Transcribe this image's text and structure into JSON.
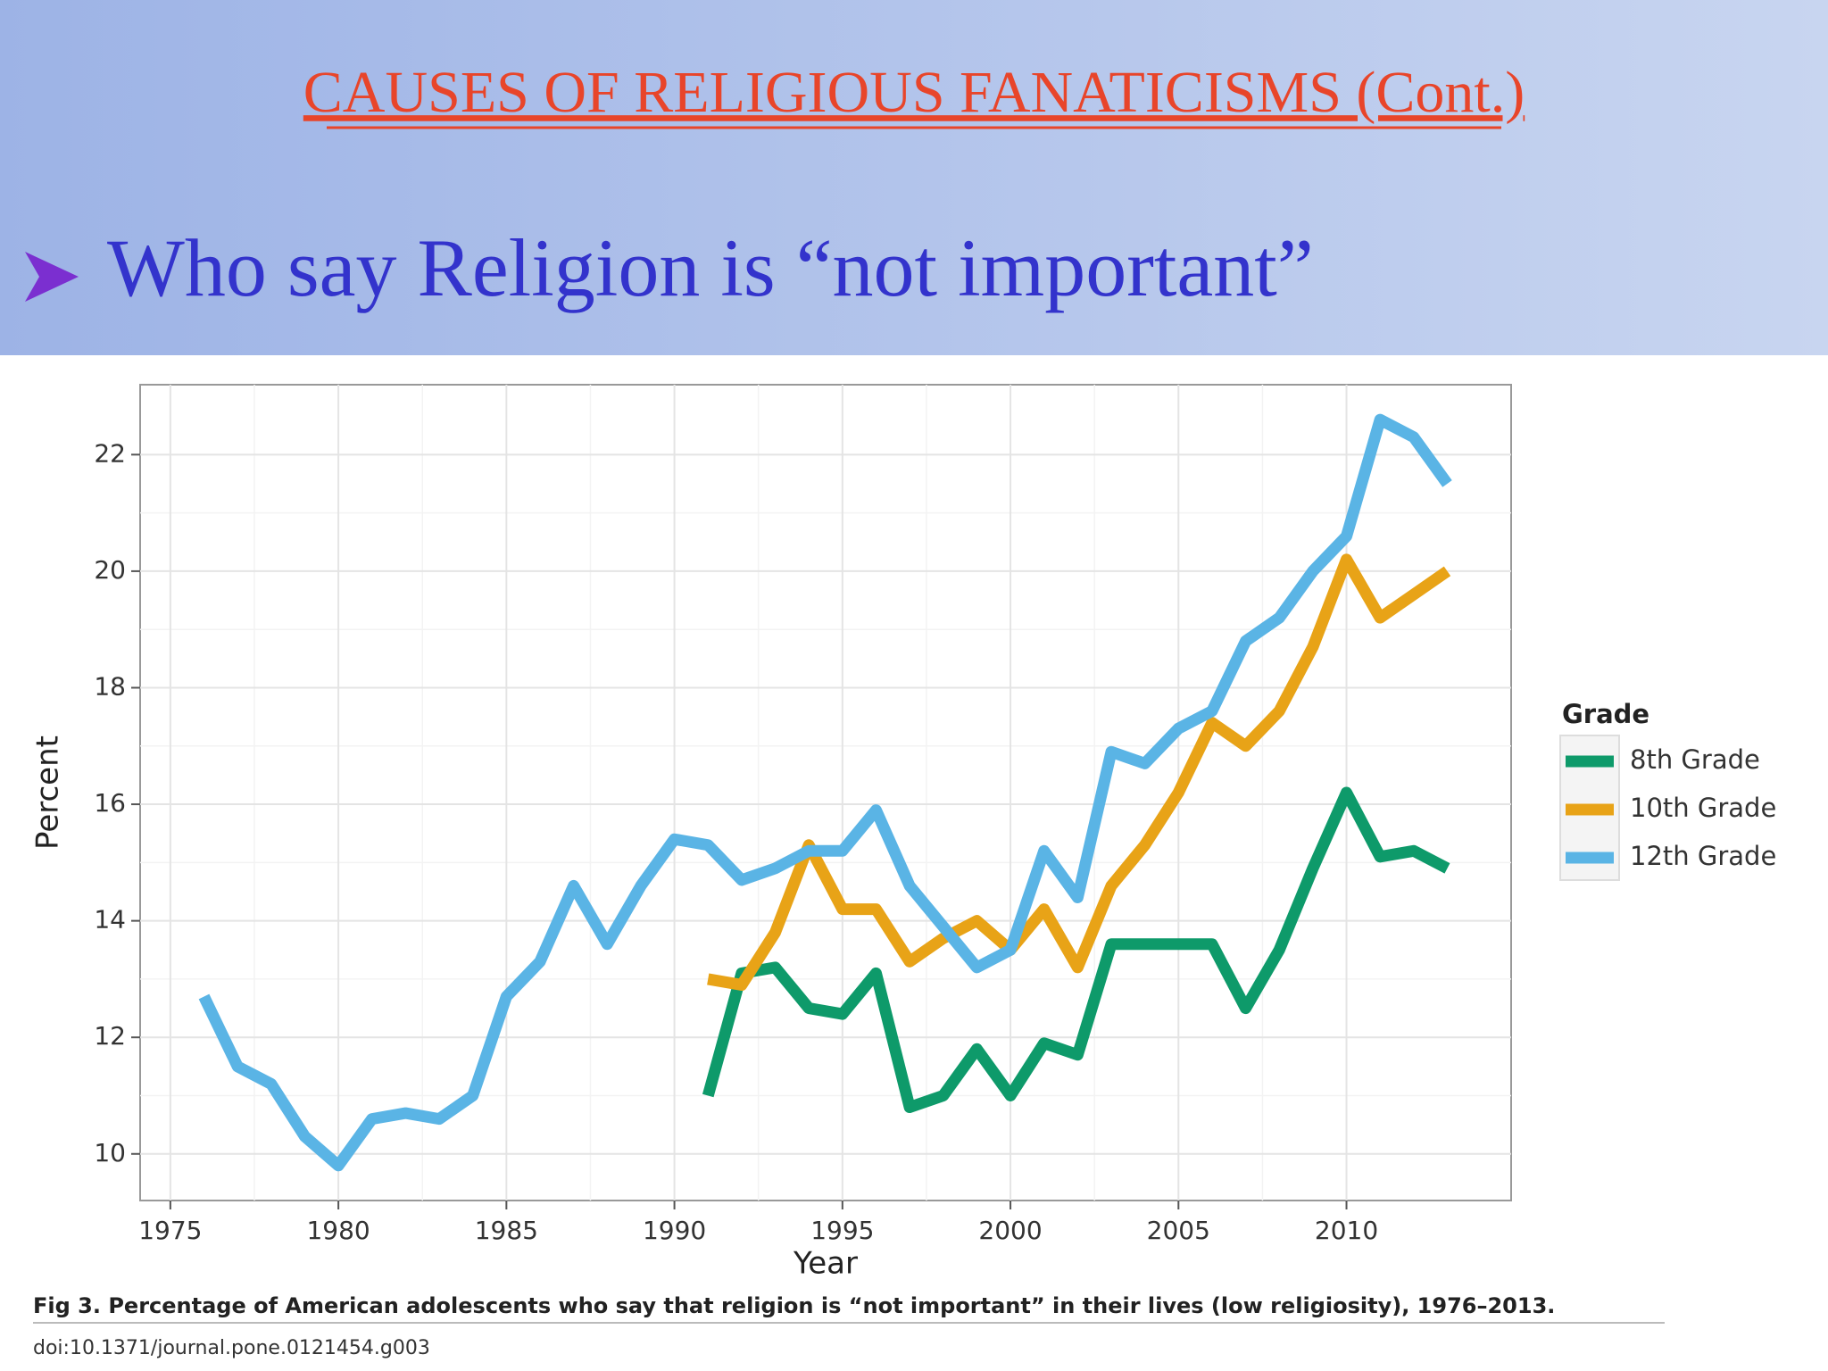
{
  "header": {
    "title": "CAUSES OF RELIGIOUS FANATICISMS (Cont.)",
    "subtitle": "Who say Religion is “not important”"
  },
  "chart_data": {
    "type": "line",
    "xlabel": "Year",
    "ylabel": "Percent",
    "x": [
      1976,
      1977,
      1978,
      1979,
      1980,
      1981,
      1982,
      1983,
      1984,
      1985,
      1986,
      1987,
      1988,
      1989,
      1990,
      1991,
      1992,
      1993,
      1994,
      1995,
      1996,
      1997,
      1998,
      1999,
      2000,
      2001,
      2002,
      2003,
      2004,
      2005,
      2006,
      2007,
      2008,
      2009,
      2010,
      2011,
      2012,
      2013
    ],
    "series": [
      {
        "name": "8th Grade",
        "color": "#0e9a6a",
        "values": [
          null,
          null,
          null,
          null,
          null,
          null,
          null,
          null,
          null,
          null,
          null,
          null,
          null,
          null,
          null,
          11.0,
          13.1,
          13.2,
          12.5,
          12.4,
          13.1,
          10.8,
          11.0,
          11.8,
          11.0,
          11.9,
          11.7,
          13.6,
          13.6,
          13.6,
          13.6,
          12.5,
          13.5,
          14.9,
          16.2,
          15.1,
          15.2,
          14.9
        ]
      },
      {
        "name": "10th Grade",
        "color": "#e8a317",
        "values": [
          null,
          null,
          null,
          null,
          null,
          null,
          null,
          null,
          null,
          null,
          null,
          null,
          null,
          null,
          null,
          13.0,
          12.9,
          13.8,
          15.3,
          14.2,
          14.2,
          13.3,
          13.7,
          14.0,
          13.5,
          14.2,
          13.2,
          14.6,
          15.3,
          16.2,
          17.4,
          17.0,
          17.6,
          18.7,
          20.2,
          19.2,
          19.6,
          20.0
        ]
      },
      {
        "name": "12th Grade",
        "color": "#5ab4e5",
        "values": [
          12.7,
          11.5,
          11.2,
          10.3,
          9.8,
          10.6,
          10.7,
          10.6,
          11.0,
          12.7,
          13.3,
          14.6,
          13.6,
          14.6,
          15.4,
          15.3,
          14.7,
          14.9,
          15.2,
          15.2,
          15.9,
          14.6,
          13.9,
          13.2,
          13.5,
          15.2,
          14.4,
          16.9,
          16.7,
          17.3,
          17.6,
          18.8,
          19.2,
          20.0,
          20.6,
          22.6,
          22.3,
          21.5
        ]
      }
    ],
    "xlim": [
      1974.1,
      2014.9
    ],
    "ylim": [
      9.2,
      23.2
    ],
    "xticks": [
      1975,
      1980,
      1985,
      1990,
      1995,
      2000,
      2005,
      2010
    ],
    "yticks": [
      10,
      12,
      14,
      16,
      18,
      20,
      22
    ],
    "grid": true,
    "legend_title": "Grade",
    "legend": "right"
  },
  "caption": "Fig 3. Percentage of American adolescents who say that religion is “not important” in their lives (low religiosity), 1976–2013.",
  "doi": "doi:10.1371/journal.pone.0121454.g003"
}
